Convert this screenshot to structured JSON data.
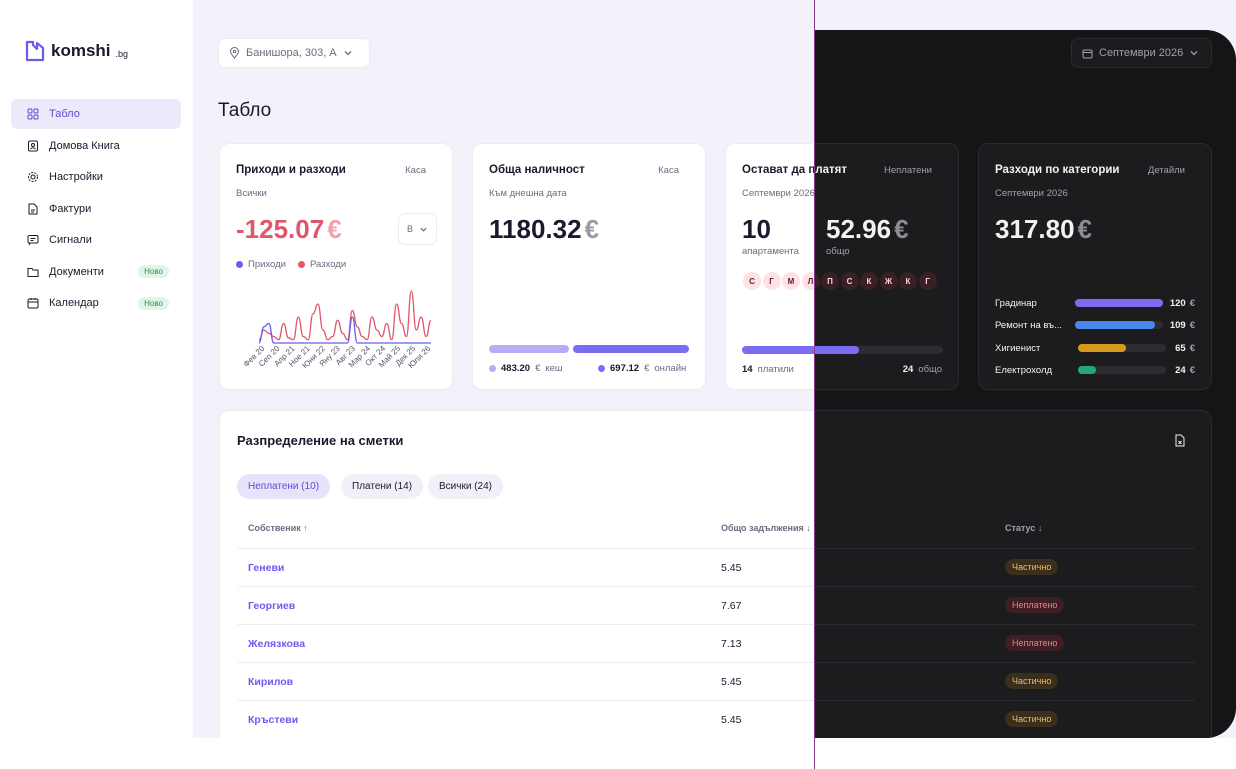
{
  "sidebar": {
    "logo": "komshi",
    "logo_suffix": ".bg",
    "nav": [
      {
        "label": "Табло"
      },
      {
        "label": "Домова Книга"
      },
      {
        "label": "Настройки"
      },
      {
        "label": "Фактури"
      },
      {
        "label": "Сигнали"
      },
      {
        "label": "Документи",
        "badge": "Ново"
      },
      {
        "label": "Календар",
        "badge": "Ново"
      }
    ]
  },
  "topbar": {
    "location": "Банишора, 303, А",
    "period": "Септември 2026"
  },
  "page_title": "Табло",
  "income": {
    "title": "Приходи и разходи",
    "link": "Каса",
    "subtitle": "Всички",
    "amount": "-125.07",
    "currency": "€",
    "select": "В",
    "chart": {
      "type": "line",
      "xticks": [
        "Фев 20",
        "Сеп 20",
        "Апр 21",
        "Ное 21",
        "Юни 22",
        "Яну 23",
        "Авг 23",
        "Мар 24",
        "Окт 24",
        "Май 25",
        "Дек 25",
        "Юли 26"
      ],
      "series": [
        {
          "name": "Приходи",
          "color": "#6b5cf0",
          "values": [
            0,
            25,
            30,
            0,
            0,
            0,
            0,
            0,
            0,
            0,
            0,
            0,
            0,
            0,
            0,
            0,
            0,
            0,
            0,
            40,
            0,
            0,
            0,
            0,
            0,
            0,
            0,
            0,
            0,
            0,
            0,
            0,
            0,
            0,
            0,
            0
          ]
        },
        {
          "name": "Разходи",
          "color": "#e0566a",
          "values": [
            5,
            20,
            15,
            10,
            5,
            30,
            8,
            5,
            40,
            10,
            5,
            45,
            60,
            20,
            5,
            10,
            35,
            15,
            5,
            50,
            25,
            10,
            5,
            40,
            20,
            10,
            30,
            5,
            60,
            30,
            10,
            80,
            20,
            40,
            10,
            35
          ]
        }
      ]
    }
  },
  "balance": {
    "title": "Обща наличност",
    "link": "Каса",
    "subtitle": "Към днешна дата",
    "amount": "1180.32",
    "currency": "€",
    "parts": [
      {
        "value": 483.2,
        "label": "483.20",
        "currency": "€",
        "name": "кеш",
        "color": "#b6adf5"
      },
      {
        "value": 697.12,
        "label": "697.12",
        "currency": "€",
        "name": "онлайн",
        "color": "#7b6cf2"
      }
    ]
  },
  "unpaid": {
    "title": "Остават да платят",
    "link": "Неплатени",
    "subtitle": "Септември 2026",
    "count": "10",
    "count_label": "апартамента",
    "amount": "52.96",
    "currency": "€",
    "amount_label": "общо",
    "avatars": [
      "С",
      "Г",
      "М",
      "Л",
      "П",
      "С",
      "К",
      "Ж",
      "К",
      "Г"
    ],
    "paid": 14,
    "paid_label": "платили",
    "total": 24,
    "total_label": "общо"
  },
  "categories": {
    "title": "Разходи по категории",
    "link": "Детайли",
    "subtitle": "Септември 2026",
    "amount": "317.80",
    "currency": "€",
    "items": [
      {
        "name": "Градинар",
        "value": 120,
        "currency": "€",
        "color": "#7b6cf2"
      },
      {
        "name": "Ремонт на въ...",
        "value": 109,
        "currency": "€",
        "color": "#4a86f0"
      },
      {
        "name": "Хигиенист",
        "value": 65,
        "currency": "€",
        "color": "#d49a1c"
      },
      {
        "name": "Електрохолд",
        "value": 24,
        "currency": "€",
        "color": "#23a878"
      }
    ]
  },
  "table": {
    "title": "Разпределение на сметки",
    "tabs": [
      "Неплатени (10)",
      "Платени (14)",
      "Всички (24)"
    ],
    "columns": [
      "Собственик ↑",
      "Общо задължения ↓",
      "Статус ↓"
    ],
    "rows": [
      [
        "Геневи",
        "5.45",
        "Частично"
      ],
      [
        "Георгиев",
        "7.67",
        "Неплатено"
      ],
      [
        "Желязкова",
        "7.13",
        "Неплатено"
      ],
      [
        "Кирилов",
        "5.45",
        "Частично"
      ],
      [
        "Кръстеви",
        "5.45",
        "Частично"
      ]
    ]
  }
}
